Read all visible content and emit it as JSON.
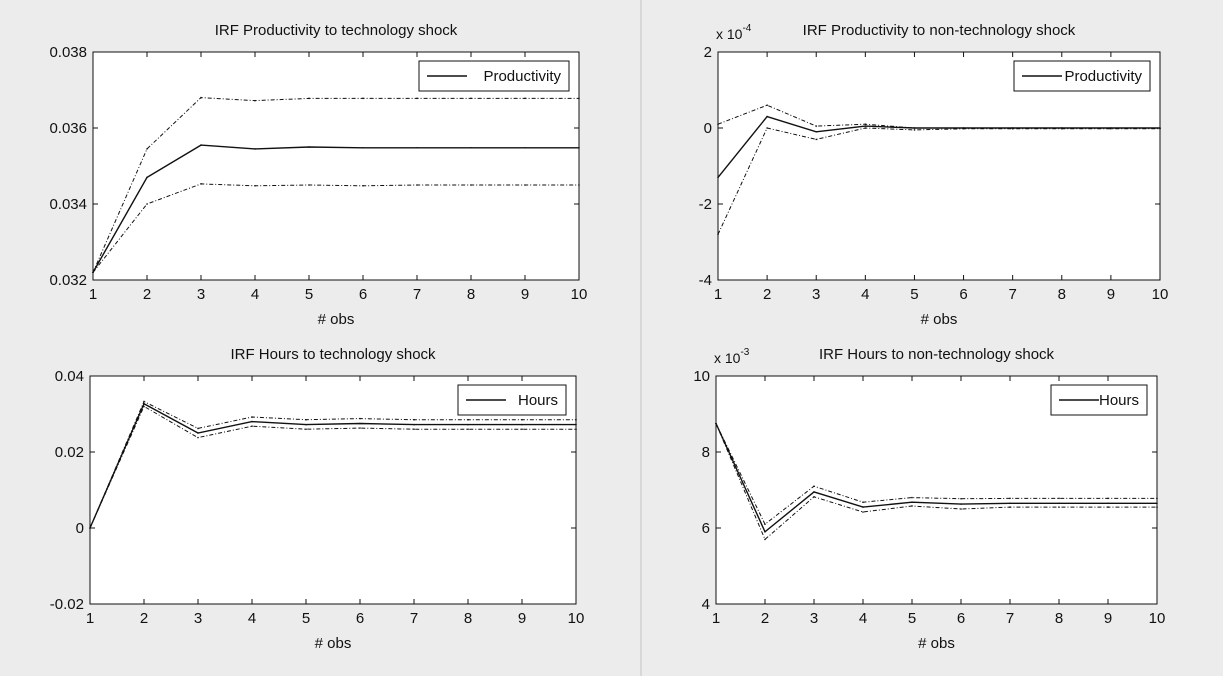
{
  "chart_data": [
    {
      "type": "line",
      "title": "IRF Productivity to technology shock",
      "xlabel": "# obs",
      "ylabel": "",
      "x": [
        1,
        2,
        3,
        4,
        5,
        6,
        7,
        8,
        9,
        10
      ],
      "xlim": [
        1,
        10
      ],
      "ylim": [
        0.032,
        0.038
      ],
      "xticks": [
        "1",
        "2",
        "3",
        "4",
        "5",
        "6",
        "7",
        "8",
        "9",
        "10"
      ],
      "yticks": [
        "0.032",
        "0.034",
        "0.036",
        "0.038"
      ],
      "ytick_values": [
        0.032,
        0.034,
        0.036,
        0.038
      ],
      "exponent": "",
      "legend": [
        "Productivity"
      ],
      "legend_position": "top-right",
      "series": [
        {
          "name": "Productivity",
          "role": "main",
          "values": [
            0.0322,
            0.0347,
            0.03555,
            0.03545,
            0.0355,
            0.03548,
            0.03548,
            0.03548,
            0.03548,
            0.03548
          ]
        },
        {
          "role": "upper",
          "values": [
            0.0322,
            0.03545,
            0.0368,
            0.03672,
            0.03678,
            0.03678,
            0.03678,
            0.03678,
            0.03678,
            0.03678
          ]
        },
        {
          "role": "lower",
          "values": [
            0.0322,
            0.034,
            0.03453,
            0.03448,
            0.0345,
            0.03448,
            0.0345,
            0.0345,
            0.0345,
            0.0345
          ]
        }
      ]
    },
    {
      "type": "line",
      "title": "IRF Productivity to non-technology shock",
      "xlabel": "# obs",
      "ylabel": "",
      "x": [
        1,
        2,
        3,
        4,
        5,
        6,
        7,
        8,
        9,
        10
      ],
      "xlim": [
        1,
        10
      ],
      "ylim": [
        -4,
        2
      ],
      "xticks": [
        "1",
        "2",
        "3",
        "4",
        "5",
        "6",
        "7",
        "8",
        "9",
        "10"
      ],
      "yticks": [
        "-4",
        "-2",
        "0",
        "2"
      ],
      "ytick_values": [
        -4,
        -2,
        0,
        2
      ],
      "exponent": "x 10-4",
      "exponent_base": "x 10",
      "exponent_power": "-4",
      "legend": [
        "Productivity"
      ],
      "legend_position": "top-right",
      "series": [
        {
          "name": "Productivity",
          "role": "main",
          "values": [
            -1.3,
            0.3,
            -0.1,
            0.05,
            0,
            0,
            0,
            0,
            0,
            0
          ]
        },
        {
          "role": "upper",
          "values": [
            0.1,
            0.6,
            0.05,
            0.1,
            0,
            0,
            0,
            0,
            0,
            0
          ]
        },
        {
          "role": "lower",
          "values": [
            -2.8,
            0,
            -0.3,
            0,
            -0.05,
            -0.02,
            -0.02,
            -0.02,
            -0.02,
            -0.02
          ]
        }
      ]
    },
    {
      "type": "line",
      "title": "IRF Hours to technology shock",
      "xlabel": "# obs",
      "ylabel": "",
      "x": [
        1,
        2,
        3,
        4,
        5,
        6,
        7,
        8,
        9,
        10
      ],
      "xlim": [
        1,
        10
      ],
      "ylim": [
        -0.02,
        0.04
      ],
      "xticks": [
        "1",
        "2",
        "3",
        "4",
        "5",
        "6",
        "7",
        "8",
        "9",
        "10"
      ],
      "yticks": [
        "-0.02",
        "0",
        "0.02",
        "0.04"
      ],
      "ytick_values": [
        -0.02,
        0,
        0.02,
        0.04
      ],
      "exponent": "",
      "legend": [
        "Hours"
      ],
      "legend_position": "top-right",
      "series": [
        {
          "name": "Hours",
          "role": "main",
          "values": [
            0,
            0.0327,
            0.025,
            0.028,
            0.0272,
            0.0275,
            0.0272,
            0.0272,
            0.0272,
            0.0272
          ]
        },
        {
          "role": "upper",
          "values": [
            0,
            0.0333,
            0.0262,
            0.0292,
            0.0285,
            0.0288,
            0.0285,
            0.0285,
            0.0285,
            0.0285
          ]
        },
        {
          "role": "lower",
          "values": [
            0,
            0.032,
            0.0238,
            0.0268,
            0.026,
            0.0263,
            0.026,
            0.026,
            0.026,
            0.026
          ]
        }
      ]
    },
    {
      "type": "line",
      "title": "IRF Hours to non-technology shock",
      "xlabel": "# obs",
      "ylabel": "",
      "x": [
        1,
        2,
        3,
        4,
        5,
        6,
        7,
        8,
        9,
        10
      ],
      "xlim": [
        1,
        10
      ],
      "ylim": [
        4,
        10
      ],
      "xticks": [
        "1",
        "2",
        "3",
        "4",
        "5",
        "6",
        "7",
        "8",
        "9",
        "10"
      ],
      "yticks": [
        "4",
        "6",
        "8",
        "10"
      ],
      "ytick_values": [
        4,
        6,
        8,
        10
      ],
      "exponent": "x 10-3",
      "exponent_base": "x 10",
      "exponent_power": "-3",
      "legend": [
        "Hours"
      ],
      "legend_position": "top-right",
      "series": [
        {
          "name": "Hours",
          "role": "main",
          "values": [
            8.75,
            5.9,
            6.95,
            6.55,
            6.68,
            6.63,
            6.65,
            6.65,
            6.65,
            6.65
          ]
        },
        {
          "role": "upper",
          "values": [
            8.75,
            6.1,
            7.1,
            6.68,
            6.8,
            6.77,
            6.78,
            6.78,
            6.78,
            6.78
          ]
        },
        {
          "role": "lower",
          "values": [
            8.75,
            5.7,
            6.82,
            6.42,
            6.58,
            6.5,
            6.55,
            6.55,
            6.55,
            6.55
          ]
        }
      ]
    }
  ]
}
